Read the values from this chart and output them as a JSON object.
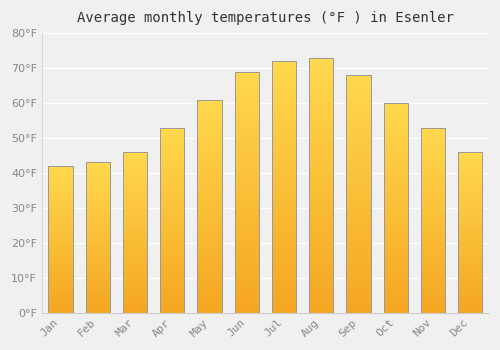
{
  "title": "Average monthly temperatures (°F ) in Esenler",
  "months": [
    "Jan",
    "Feb",
    "Mar",
    "Apr",
    "May",
    "Jun",
    "Jul",
    "Aug",
    "Sep",
    "Oct",
    "Nov",
    "Dec"
  ],
  "values": [
    42,
    43,
    46,
    53,
    61,
    69,
    72,
    73,
    68,
    60,
    53,
    46
  ],
  "bar_color_top": "#FFD84D",
  "bar_color_bottom": "#F5A623",
  "bar_edge_color": "#999999",
  "background_color": "#F0F0F0",
  "plot_bg_color": "#F0F0F0",
  "grid_color": "#FFFFFF",
  "text_color": "#888888",
  "title_color": "#333333",
  "ylim": [
    0,
    80
  ],
  "yticks": [
    0,
    10,
    20,
    30,
    40,
    50,
    60,
    70,
    80
  ],
  "title_fontsize": 10,
  "tick_fontsize": 8,
  "bar_width": 0.65
}
